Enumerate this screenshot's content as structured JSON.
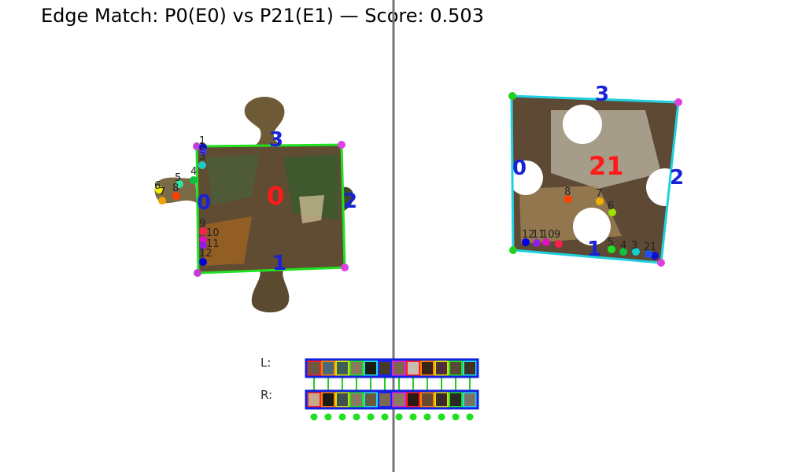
{
  "title": "Edge Match: P0(E0) vs P21(E1) — Score: 0.503",
  "left_piece": {
    "id": "0",
    "corners": [
      "0",
      "1",
      "2",
      "3"
    ],
    "points": [
      "1",
      "2",
      "3",
      "4",
      "5",
      "6",
      "7",
      "8",
      "9",
      "10",
      "11",
      "12"
    ],
    "colors": [
      "#0a10d8",
      "#4b3fe0",
      "#20c8c8",
      "#10c040",
      "#32e0a0",
      "#f0f000",
      "#f0a000",
      "#ff4000",
      "#ff1e50",
      "#e010c0",
      "#9020e0",
      "#0000e0"
    ]
  },
  "right_piece": {
    "id": "21",
    "corners": [
      "0",
      "1",
      "2",
      "3"
    ],
    "points": [
      "1",
      "2",
      "3",
      "4",
      "5",
      "6",
      "7",
      "8",
      "9",
      "10",
      "11",
      "12"
    ],
    "colors": [
      "#0a10d8",
      "#2050f0",
      "#10d0d0",
      "#10c040",
      "#20e020",
      "#a0e000",
      "#f0b000",
      "#ff4000",
      "#ff1e50",
      "#e010c0",
      "#9020e0",
      "#0000e0"
    ]
  },
  "swatches": {
    "left_label": "L:",
    "right_label": "R:",
    "left_colors": [
      "#6b5a42",
      "#4a6a78",
      "#3d5f55",
      "#8a7a5c",
      "#1e1a14",
      "#443a25",
      "#7a6a4a",
      "#c8beb0",
      "#3a2218",
      "#4e2e3a",
      "#5a4a34",
      "#3e3222"
    ],
    "right_colors": [
      "#c4aa8a",
      "#1e1a16",
      "#3e5050",
      "#8a7a60",
      "#6a5a40",
      "#7a6a4e",
      "#8a7c62",
      "#2a1a14",
      "#6a4a34",
      "#3a2a28",
      "#2a2a22",
      "#7a7468"
    ],
    "frame_colors": [
      "#ff2020",
      "#ff8000",
      "#e0e000",
      "#20e020",
      "#20e0e0",
      "#2020ff",
      "#e020e0",
      "#ff2020",
      "#ff8000",
      "#e0e000",
      "#20e020",
      "#20e0e0"
    ]
  }
}
